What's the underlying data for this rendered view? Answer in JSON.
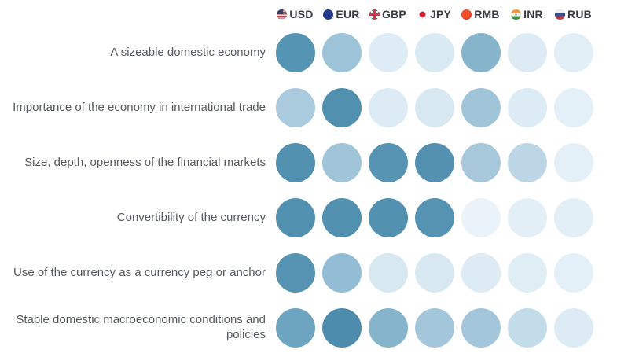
{
  "page": {
    "background": "#ffffff",
    "text_color": "#55595d",
    "header_text_color": "#3a3e42"
  },
  "header": {
    "currencies": [
      {
        "code": "USD",
        "flag_icon": "us-flag-icon"
      },
      {
        "code": "EUR",
        "flag_icon": "eu-flag-icon"
      },
      {
        "code": "GBP",
        "flag_icon": "uk-flag-icon"
      },
      {
        "code": "JPY",
        "flag_icon": "japan-flag-icon"
      },
      {
        "code": "RMB",
        "flag_icon": "china-flag-icon"
      },
      {
        "code": "INR",
        "flag_icon": "india-flag-icon"
      },
      {
        "code": "RUB",
        "flag_icon": "russia-flag-icon"
      }
    ]
  },
  "chart_data": {
    "type": "heatmap",
    "title": "",
    "description_visible": false,
    "columns": [
      "USD",
      "EUR",
      "GBP",
      "JPY",
      "RMB",
      "INR",
      "RUB"
    ],
    "intensity_scale": "1 (lightest) to 5 (darkest)",
    "rows": [
      {
        "label": "A sizeable domestic economy",
        "scores": [
          5,
          3,
          1,
          1,
          4,
          1,
          1
        ],
        "colors": [
          "#5694b3",
          "#9cc3d8",
          "#ddecf5",
          "#d9eaf3",
          "#85b4cb",
          "#dcebf4",
          "#e2eff7"
        ]
      },
      {
        "label": "Importance of the economy in international trade",
        "scores": [
          3,
          5,
          1,
          1,
          3,
          1,
          1
        ],
        "colors": [
          "#a9cbdd",
          "#5290b0",
          "#dcebf4",
          "#d7e8f1",
          "#a0c4d8",
          "#dcebf4",
          "#e4f0f7"
        ]
      },
      {
        "label": "Size, depth, openness of the financial markets",
        "scores": [
          5,
          3,
          5,
          5,
          3,
          2,
          1
        ],
        "colors": [
          "#5290b0",
          "#a0c4d8",
          "#5793b2",
          "#5491b1",
          "#a6c8da",
          "#bdd6e5",
          "#e4f0f7"
        ]
      },
      {
        "label": "Convertibility of the currency",
        "scores": [
          5,
          5,
          5,
          5,
          1,
          1,
          1
        ],
        "colors": [
          "#5290b0",
          "#5290b0",
          "#5391b1",
          "#5693b2",
          "#e9f3f9",
          "#e2eff7",
          "#e3eff6"
        ]
      },
      {
        "label": "Use of the currency as a currency peg or anchor",
        "scores": [
          5,
          4,
          1,
          1,
          1,
          1,
          1
        ],
        "colors": [
          "#5693b2",
          "#93bdd4",
          "#d8e8f1",
          "#d8e8f1",
          "#dcebf4",
          "#dfedf5",
          "#e4f0f7"
        ]
      },
      {
        "label": "Stable domestic macroeconomic conditions and policies",
        "scores": [
          4,
          5,
          4,
          3,
          3,
          2,
          1
        ],
        "colors": [
          "#6da5c0",
          "#4e8cad",
          "#85b4cb",
          "#a3c6da",
          "#a3c6da",
          "#c3dcea",
          "#dcebf4"
        ]
      }
    ]
  }
}
